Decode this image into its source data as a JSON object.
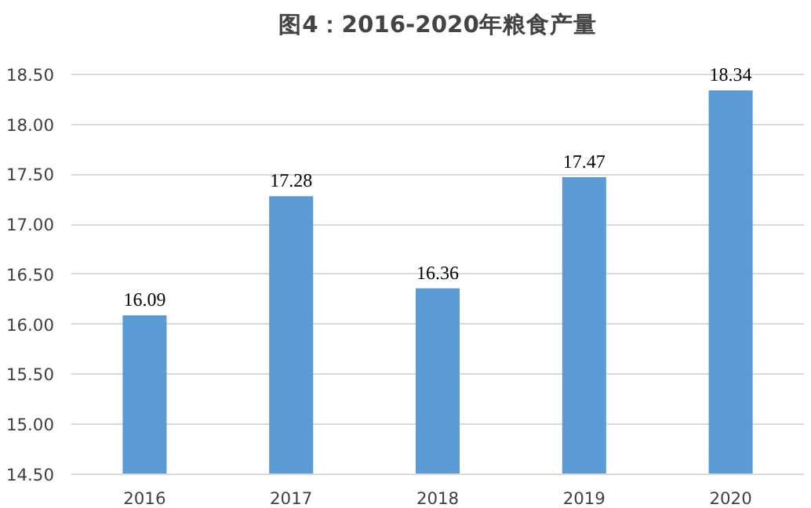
{
  "chart_data": {
    "type": "bar",
    "title": "图4：2016-2020年粮食产量",
    "categories": [
      "2016",
      "2017",
      "2018",
      "2019",
      "2020"
    ],
    "values": [
      16.09,
      17.28,
      16.36,
      17.47,
      18.34
    ],
    "color": "#5b9bd5",
    "ylim": [
      14.5,
      18.5
    ],
    "yticks": [
      {
        "value": 14.5,
        "label": "14.50"
      },
      {
        "value": 15,
        "label": "15.00"
      },
      {
        "value": 15.5,
        "label": "15.50"
      },
      {
        "value": 16,
        "label": "16.00"
      },
      {
        "value": 16.5,
        "label": "16.50"
      },
      {
        "value": 17,
        "label": "17.00"
      },
      {
        "value": 17.5,
        "label": "17.50"
      },
      {
        "value": 18,
        "label": "18.00"
      },
      {
        "value": 18.5,
        "label": "18.50"
      }
    ],
    "grid": "y",
    "data_labels": true
  }
}
